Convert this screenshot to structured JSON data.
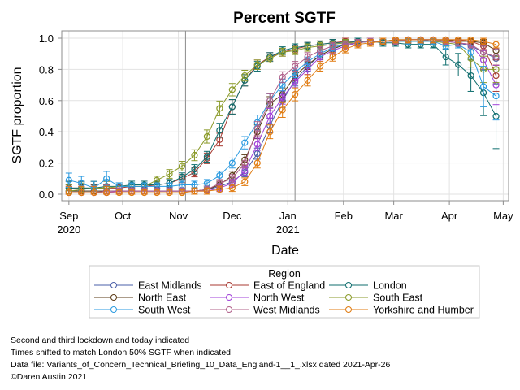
{
  "chart_data": {
    "type": "line",
    "title": "Percent SGTF",
    "xlabel": "Date",
    "ylabel": "SGTF proportion",
    "ylim": [
      0.0,
      1.0
    ],
    "yticks": [
      "0.0",
      "0.2",
      "0.4",
      "0.6",
      "0.8",
      "1.0"
    ],
    "ytick_values": [
      0.0,
      0.2,
      0.4,
      0.6,
      0.8,
      1.0
    ],
    "xlim": [
      "2020-08-28",
      "2021-05-04"
    ],
    "xticks": [
      {
        "date": "2020-09-01",
        "label": "Sep",
        "sublabel": "2020"
      },
      {
        "date": "2020-10-01",
        "label": "Oct",
        "sublabel": ""
      },
      {
        "date": "2020-11-01",
        "label": "Nov",
        "sublabel": ""
      },
      {
        "date": "2020-12-01",
        "label": "Dec",
        "sublabel": ""
      },
      {
        "date": "2021-01-01",
        "label": "Jan",
        "sublabel": "2021"
      },
      {
        "date": "2021-02-01",
        "label": "Feb",
        "sublabel": ""
      },
      {
        "date": "2021-03-01",
        "label": "Mar",
        "sublabel": ""
      },
      {
        "date": "2021-04-01",
        "label": "Apr",
        "sublabel": ""
      },
      {
        "date": "2021-05-01",
        "label": "May",
        "sublabel": ""
      }
    ],
    "grid": true,
    "reference_lines": [
      {
        "date": "2020-11-05",
        "meaning": "second lockdown"
      },
      {
        "date": "2021-01-05",
        "meaning": "third lockdown"
      }
    ],
    "legend": {
      "title": "Region",
      "placement": "bottom",
      "columns": 3
    },
    "x_dates": [
      "2020-09-01",
      "2020-09-08",
      "2020-09-15",
      "2020-09-22",
      "2020-09-29",
      "2020-10-06",
      "2020-10-13",
      "2020-10-20",
      "2020-10-27",
      "2020-11-03",
      "2020-11-10",
      "2020-11-17",
      "2020-11-24",
      "2020-12-01",
      "2020-12-08",
      "2020-12-15",
      "2020-12-22",
      "2020-12-29",
      "2021-01-05",
      "2021-01-12",
      "2021-01-19",
      "2021-01-26",
      "2021-02-02",
      "2021-02-09",
      "2021-02-16",
      "2021-02-23",
      "2021-03-02",
      "2021-03-09",
      "2021-03-16",
      "2021-03-23",
      "2021-03-30",
      "2021-04-06",
      "2021-04-13",
      "2021-04-20",
      "2021-04-27"
    ],
    "series": [
      {
        "name": "East Midlands",
        "color": "#4a5fa8",
        "values": [
          0.02,
          0.02,
          0.02,
          0.02,
          0.02,
          0.02,
          0.02,
          0.02,
          0.02,
          0.02,
          0.02,
          0.03,
          0.05,
          0.08,
          0.14,
          0.26,
          0.44,
          0.6,
          0.73,
          0.82,
          0.89,
          0.93,
          0.96,
          0.97,
          0.98,
          0.98,
          0.98,
          0.99,
          0.99,
          0.98,
          0.98,
          0.97,
          0.95,
          0.91,
          0.87
        ]
      },
      {
        "name": "East of England",
        "color": "#a83a32",
        "values": [
          0.04,
          0.04,
          0.04,
          0.04,
          0.04,
          0.05,
          0.05,
          0.06,
          0.07,
          0.1,
          0.14,
          0.23,
          0.35,
          0.56,
          0.73,
          0.83,
          0.88,
          0.91,
          0.93,
          0.95,
          0.96,
          0.97,
          0.98,
          0.98,
          0.98,
          0.98,
          0.98,
          0.99,
          0.99,
          0.99,
          0.99,
          0.99,
          0.98,
          0.95,
          0.76
        ]
      },
      {
        "name": "London",
        "color": "#0f6e6e",
        "values": [
          0.04,
          0.04,
          0.04,
          0.05,
          0.05,
          0.06,
          0.06,
          0.06,
          0.07,
          0.11,
          0.16,
          0.24,
          0.41,
          0.56,
          0.73,
          0.82,
          0.88,
          0.92,
          0.94,
          0.95,
          0.96,
          0.97,
          0.97,
          0.98,
          0.98,
          0.97,
          0.97,
          0.96,
          0.96,
          0.96,
          0.88,
          0.83,
          0.76,
          0.65,
          0.5
        ]
      },
      {
        "name": "North East",
        "color": "#5a3a15",
        "values": [
          0.02,
          0.02,
          0.02,
          0.02,
          0.02,
          0.02,
          0.02,
          0.02,
          0.02,
          0.02,
          0.02,
          0.03,
          0.06,
          0.12,
          0.22,
          0.4,
          0.58,
          0.64,
          0.76,
          0.83,
          0.89,
          0.93,
          0.96,
          0.97,
          0.98,
          0.98,
          0.99,
          0.99,
          0.99,
          0.99,
          0.99,
          0.98,
          0.98,
          0.97,
          0.92
        ]
      },
      {
        "name": "North West",
        "color": "#a040d8",
        "values": [
          0.01,
          0.01,
          0.01,
          0.01,
          0.02,
          0.02,
          0.02,
          0.02,
          0.02,
          0.02,
          0.02,
          0.02,
          0.04,
          0.07,
          0.15,
          0.32,
          0.5,
          0.62,
          0.72,
          0.8,
          0.88,
          0.92,
          0.95,
          0.97,
          0.98,
          0.98,
          0.98,
          0.99,
          0.99,
          0.99,
          0.98,
          0.97,
          0.96,
          0.86,
          0.7
        ]
      },
      {
        "name": "South East",
        "color": "#8a9a28",
        "values": [
          0.02,
          0.03,
          0.04,
          0.04,
          0.05,
          0.05,
          0.05,
          0.09,
          0.13,
          0.18,
          0.25,
          0.37,
          0.55,
          0.67,
          0.76,
          0.83,
          0.87,
          0.91,
          0.92,
          0.94,
          0.95,
          0.96,
          0.97,
          0.97,
          0.98,
          0.98,
          0.98,
          0.98,
          0.98,
          0.98,
          0.97,
          0.96,
          0.87,
          0.8,
          0.8
        ]
      },
      {
        "name": "South West",
        "color": "#2a9ae0",
        "values": [
          0.09,
          0.07,
          0.04,
          0.1,
          0.05,
          0.05,
          0.05,
          0.05,
          0.05,
          0.06,
          0.06,
          0.07,
          0.12,
          0.2,
          0.33,
          0.46,
          0.6,
          0.7,
          0.78,
          0.85,
          0.9,
          0.94,
          0.96,
          0.97,
          0.98,
          0.98,
          0.98,
          0.98,
          0.98,
          0.98,
          0.95,
          0.96,
          0.91,
          0.69,
          0.63
        ]
      },
      {
        "name": "West Midlands",
        "color": "#b0608a",
        "values": [
          0.01,
          0.01,
          0.01,
          0.02,
          0.02,
          0.02,
          0.02,
          0.02,
          0.02,
          0.02,
          0.02,
          0.03,
          0.07,
          0.1,
          0.2,
          0.42,
          0.6,
          0.75,
          0.82,
          0.88,
          0.92,
          0.95,
          0.96,
          0.97,
          0.98,
          0.98,
          0.98,
          0.99,
          0.99,
          0.99,
          0.98,
          0.97,
          0.96,
          0.91,
          0.88
        ]
      },
      {
        "name": "Yorkshire and Humber",
        "color": "#e07b10",
        "values": [
          0.01,
          0.01,
          0.01,
          0.01,
          0.01,
          0.01,
          0.01,
          0.01,
          0.01,
          0.01,
          0.02,
          0.02,
          0.03,
          0.04,
          0.08,
          0.2,
          0.4,
          0.54,
          0.64,
          0.73,
          0.82,
          0.88,
          0.93,
          0.96,
          0.97,
          0.98,
          0.99,
          0.99,
          0.99,
          0.99,
          0.99,
          0.99,
          0.99,
          0.98,
          0.96
        ]
      }
    ]
  },
  "footnotes": [
    "Second and third lockdown and today indicated",
    "Times shifted to match London 50% SGTF when indicated",
    "Data file: Variants_of_Concern_Technical_Briefing_10_Data_England-1__1_.xlsx dated 2021-Apr-26",
    "©Daren Austin 2021"
  ]
}
